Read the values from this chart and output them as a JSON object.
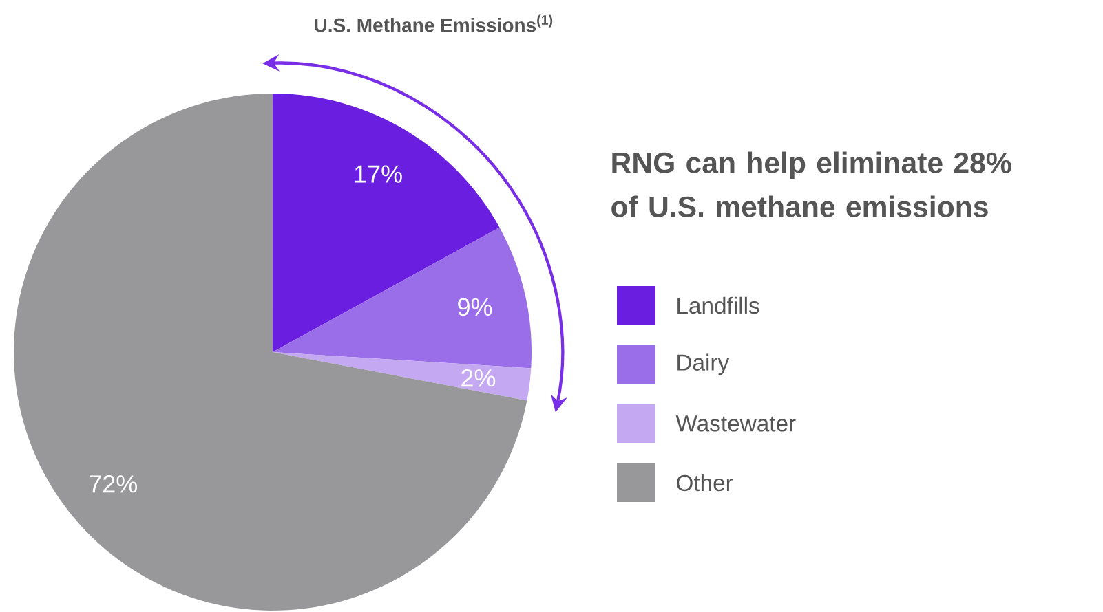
{
  "chart_data": {
    "type": "pie",
    "title": "U.S. Methane Emissions$^{(1)}$",
    "categories": [
      "Landfills",
      "Dairy",
      "Wastewater",
      "Other"
    ],
    "values": [
      17,
      9,
      2,
      72
    ],
    "colors": [
      "#6a1fe0",
      "#9a6ee8",
      "#c4a8f2",
      "#98989a"
    ],
    "value_labels": [
      "17%",
      "9%",
      "2%",
      "72%"
    ],
    "annotations": [
      "RNG can help eliminate 28% of U.S. methane emissions"
    ],
    "legend": "right"
  }
}
